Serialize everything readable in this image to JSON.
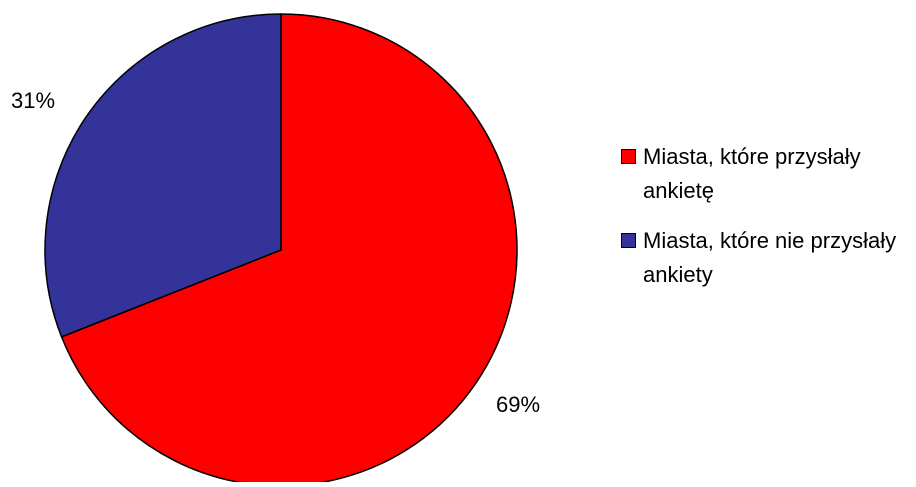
{
  "chart_data": {
    "type": "pie",
    "slices": [
      {
        "label": "Miasta, które przysłały ankietę",
        "value": 69,
        "display": "69%",
        "color": "#FF0000"
      },
      {
        "label": "Miasta, które nie przysłały ankiety",
        "value": 31,
        "display": "31%",
        "color": "#333399"
      }
    ],
    "start_angle_deg": 0,
    "direction": "clockwise",
    "legend_position": "right",
    "title": ""
  }
}
